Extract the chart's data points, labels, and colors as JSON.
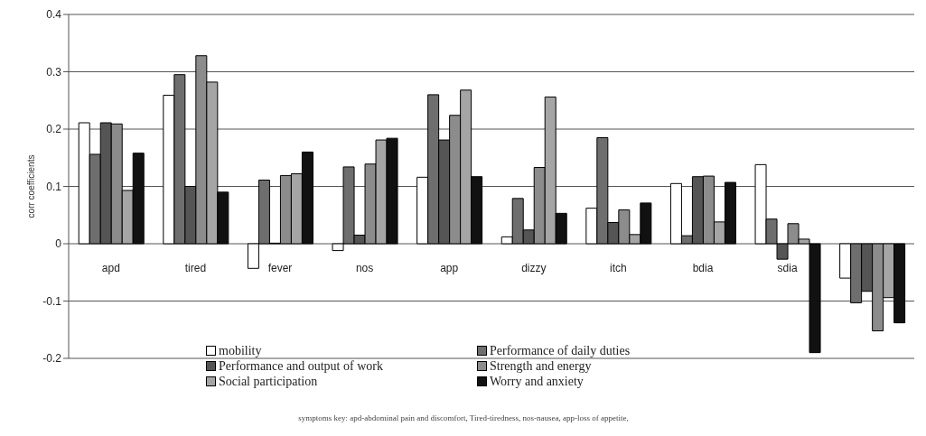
{
  "chart_data": {
    "type": "bar",
    "ylabel": "corr coefficients",
    "categories": [
      "apd",
      "tired",
      "fever",
      "nos",
      "app",
      "dizzy",
      "itch",
      "bdia",
      "sdia",
      null
    ],
    "series": [
      {
        "name": "mobility",
        "color": "#ffffff",
        "values": [
          0.211,
          0.259,
          -0.043,
          -0.012,
          0.116,
          0.012,
          0.062,
          0.105,
          0.138,
          -0.06
        ]
      },
      {
        "name": "Performance of daily duties",
        "color": "#6e6e6e",
        "values": [
          0.156,
          0.295,
          0.111,
          0.134,
          0.26,
          0.079,
          0.185,
          0.014,
          0.043,
          -0.103
        ]
      },
      {
        "name": "Performance and output of work",
        "color": "#555555",
        "values": [
          0.211,
          0.1,
          0.001,
          0.015,
          0.181,
          0.024,
          0.037,
          0.117,
          -0.027,
          -0.083
        ]
      },
      {
        "name": "Strength and energy",
        "color": "#8c8c8c",
        "values": [
          0.209,
          0.328,
          0.119,
          0.139,
          0.224,
          0.133,
          0.059,
          0.118,
          0.035,
          -0.152
        ]
      },
      {
        "name": "Social participation",
        "color": "#a5a5a5",
        "values": [
          0.093,
          0.282,
          0.122,
          0.181,
          0.268,
          0.256,
          0.016,
          0.038,
          0.008,
          -0.094
        ]
      },
      {
        "name": "Worry and anxiety",
        "color": "#111111",
        "values": [
          0.158,
          0.09,
          0.16,
          0.184,
          0.117,
          0.053,
          0.071,
          0.107,
          -0.19,
          -0.138
        ]
      }
    ],
    "ylim": [
      -0.2,
      0.4
    ],
    "yticks": [
      -0.2,
      -0.1,
      0,
      0.1,
      0.2,
      0.3,
      0.4
    ],
    "grid": "y",
    "legend": "bottom",
    "annotations": [
      "symptoms key: apd-abdominal pain and discomfort, Tired-tiredness, nos-nausea, app-loss of appetite,"
    ]
  }
}
